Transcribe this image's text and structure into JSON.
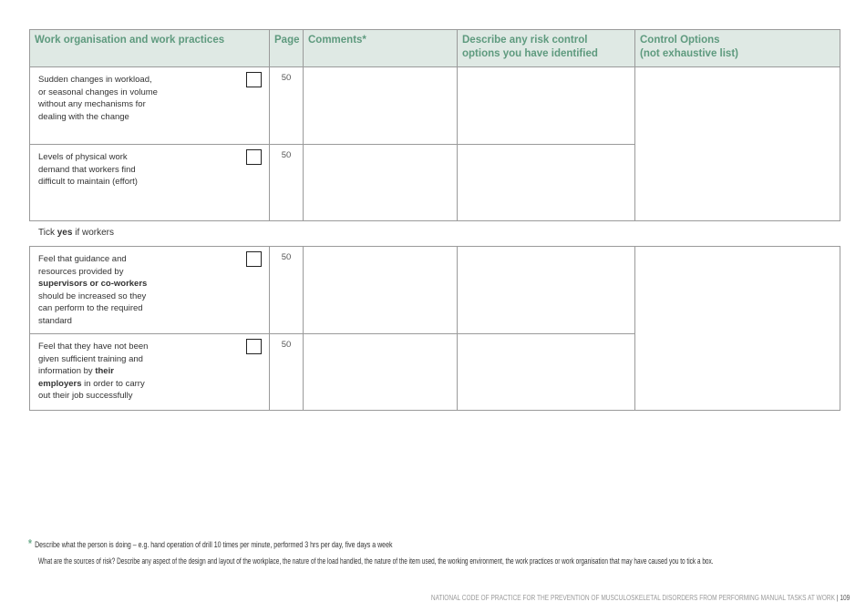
{
  "headers": {
    "section": "Work organisation and work practices",
    "page": "Page",
    "comments": "Comments*",
    "describe_line1": "Describe any risk control",
    "describe_line2": "options you have identified",
    "control_line1": "Control Options",
    "control_line2": "(not exhaustive list)"
  },
  "table1": [
    {
      "text": "Sudden changes in workload, or seasonal changes in volume without any mechanisms for dealing with the change",
      "page": "50",
      "checked": false
    },
    {
      "text": "Levels of physical work demand that workers find difficult to maintain (effort)",
      "page": "50",
      "checked": false
    }
  ],
  "tick_prefix": "Tick ",
  "tick_bold": "yes",
  "tick_suffix": " if workers",
  "table2": [
    {
      "pre": "Feel that guidance and resources provided by ",
      "bold": "supervisors or co-workers",
      "post": " should be increased so they can perform to the required standard",
      "page": "50",
      "checked": false
    },
    {
      "pre": "Feel that they have not been given sufficient training and information by ",
      "bold": "their employers",
      "post": " in order to carry out their job successfully",
      "page": "50",
      "checked": false
    }
  ],
  "footnote": {
    "star": "*",
    "line1": "Describe what the person is doing – e.g. hand operation of drill 10 times per minute, performed 3 hrs per day, five days a week",
    "line2": "What are the sources of risk? Describe any aspect of the design and layout of the workplace, the nature of the load handled, the nature of the item used, the working environment, the work practices or work organisation that may have caused you to tick a box."
  },
  "footer": {
    "title": "NATIONAL CODE OF PRACTICE FOR THE PREVENTION OF MUSCULOSKELETAL DISORDERS FROM PERFORMING MANUAL TASKS AT WORK",
    "separator": "|",
    "page_number": "109"
  },
  "colors": {
    "header_bg": "#dfe9e4",
    "header_text": "#5e9a7e"
  }
}
